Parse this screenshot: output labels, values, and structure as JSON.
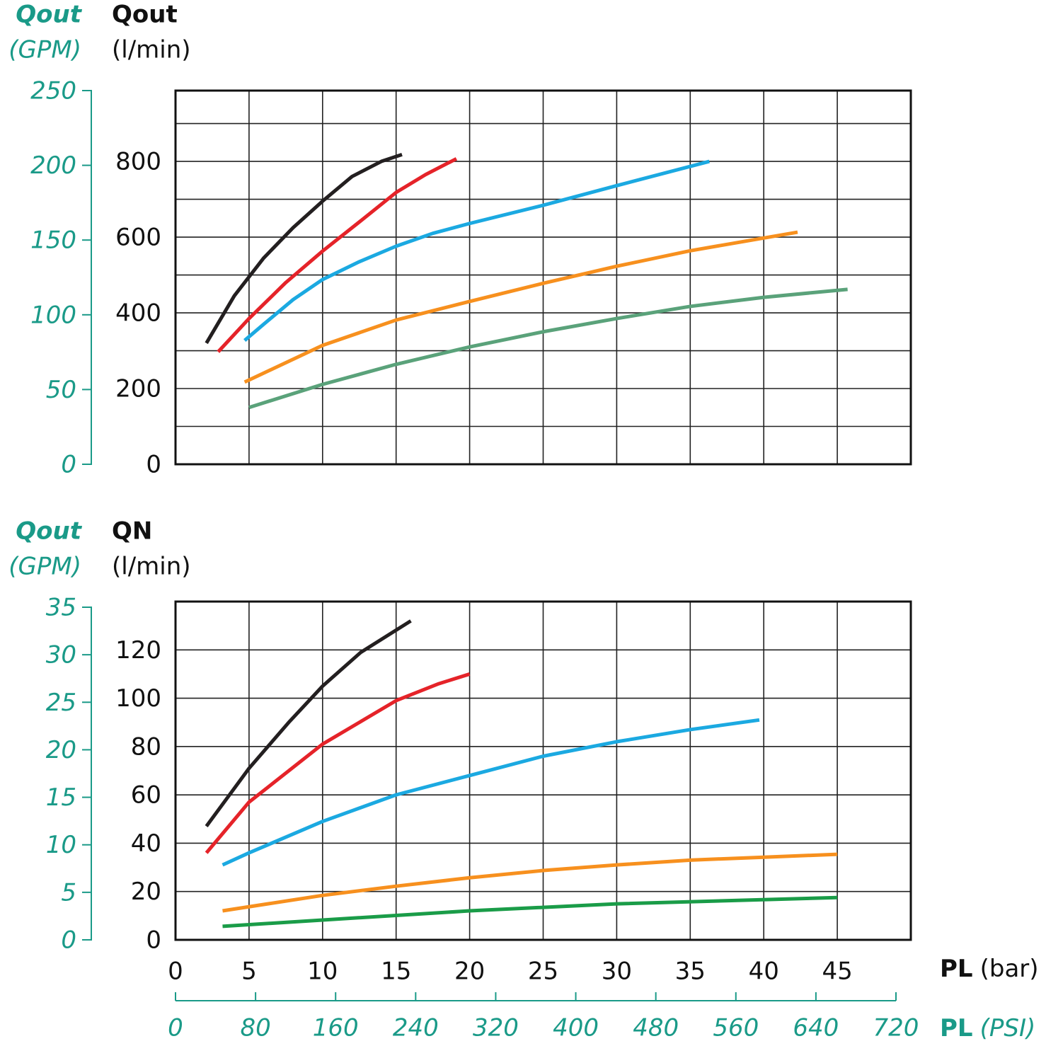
{
  "chart_data": [
    {
      "type": "line",
      "y_label_title": "Qout",
      "y_label_unit": "(l/min)",
      "y2_label_title": "Qout",
      "y2_label_unit": "(GPM)",
      "xlim": [
        0,
        50
      ],
      "xgrid": [
        5,
        10,
        15,
        20,
        25,
        30,
        35,
        40,
        45
      ],
      "ylim": [
        0,
        987
      ],
      "yticks": [
        0,
        200,
        400,
        600,
        800
      ],
      "ygrid": [
        100,
        200,
        300,
        400,
        500,
        600,
        700,
        800,
        900
      ],
      "y2lim": [
        0,
        250
      ],
      "y2ticks": [
        0,
        50,
        100,
        150,
        200,
        250
      ],
      "grid": true,
      "series": [
        {
          "color": "#231f20",
          "x": [
            2.1,
            4,
            6,
            8,
            10,
            12,
            14,
            15.4
          ],
          "values": [
            320,
            445,
            545,
            625,
            695,
            760,
            800,
            818
          ]
        },
        {
          "color": "#e52329",
          "x": [
            2.9,
            5,
            7.5,
            10,
            12.5,
            15,
            17,
            19.1
          ],
          "values": [
            297,
            385,
            480,
            563,
            640,
            718,
            765,
            807
          ]
        },
        {
          "color": "#1ba9e1",
          "x": [
            4.7,
            6,
            8,
            10,
            12.5,
            15,
            17.5,
            20,
            25,
            30,
            36.3
          ],
          "values": [
            327,
            370,
            435,
            488,
            535,
            576,
            610,
            636,
            684,
            736,
            800
          ]
        },
        {
          "color": "#f7901e",
          "x": [
            4.7,
            10,
            15,
            20,
            25,
            30,
            35,
            42.3
          ],
          "values": [
            217,
            314,
            381,
            430,
            478,
            523,
            564,
            613
          ]
        },
        {
          "color": "#5aa27a",
          "x": [
            5,
            10,
            15,
            20,
            25,
            30,
            35,
            40,
            45.7
          ],
          "values": [
            150,
            211,
            264,
            310,
            350,
            385,
            417,
            441,
            462
          ]
        }
      ]
    },
    {
      "type": "line",
      "y_label_title": "QN",
      "y_label_unit": "(l/min)",
      "y2_label_title": "Qout",
      "y2_label_unit": "(GPM)",
      "x_label_title": "PL",
      "x_label_unit": "(bar)",
      "x2_label_title": "PL",
      "x2_label_unit": "(PSI)",
      "xlim": [
        0,
        50
      ],
      "xticks": [
        0,
        5,
        10,
        15,
        20,
        25,
        30,
        35,
        40,
        45
      ],
      "ylim": [
        0,
        140
      ],
      "yticks": [
        0,
        20,
        40,
        60,
        80,
        100,
        120
      ],
      "y2lim": [
        0,
        35
      ],
      "y2ticks": [
        0,
        5,
        10,
        15,
        20,
        25,
        30,
        35
      ],
      "x2lim": [
        0,
        720
      ],
      "x2ticks": [
        0,
        80,
        160,
        240,
        320,
        400,
        480,
        560,
        640,
        720
      ],
      "grid": true,
      "series": [
        {
          "color": "#231f20",
          "x": [
            2.1,
            5,
            7.7,
            10,
            12.6,
            16
          ],
          "values": [
            47,
            71,
            90,
            105,
            119,
            132
          ]
        },
        {
          "color": "#e52329",
          "x": [
            2.1,
            5,
            10,
            15,
            17.9,
            20
          ],
          "values": [
            36,
            57,
            81,
            99,
            106,
            110
          ]
        },
        {
          "color": "#1ba9e1",
          "x": [
            3.2,
            5,
            10,
            15,
            20,
            25,
            30,
            35,
            39.7
          ],
          "values": [
            31,
            36,
            49,
            60,
            68,
            76,
            82,
            87,
            91
          ]
        },
        {
          "color": "#f7901e",
          "x": [
            3.2,
            10,
            15,
            20,
            25,
            30,
            35,
            40,
            45
          ],
          "values": [
            12,
            18.4,
            22.2,
            25.7,
            28.7,
            31,
            33,
            34.2,
            35.4
          ]
        },
        {
          "color": "#1a9c48",
          "x": [
            3.2,
            10,
            20,
            30,
            45
          ],
          "values": [
            5.6,
            8.2,
            12,
            14.9,
            17.5
          ]
        }
      ]
    }
  ]
}
